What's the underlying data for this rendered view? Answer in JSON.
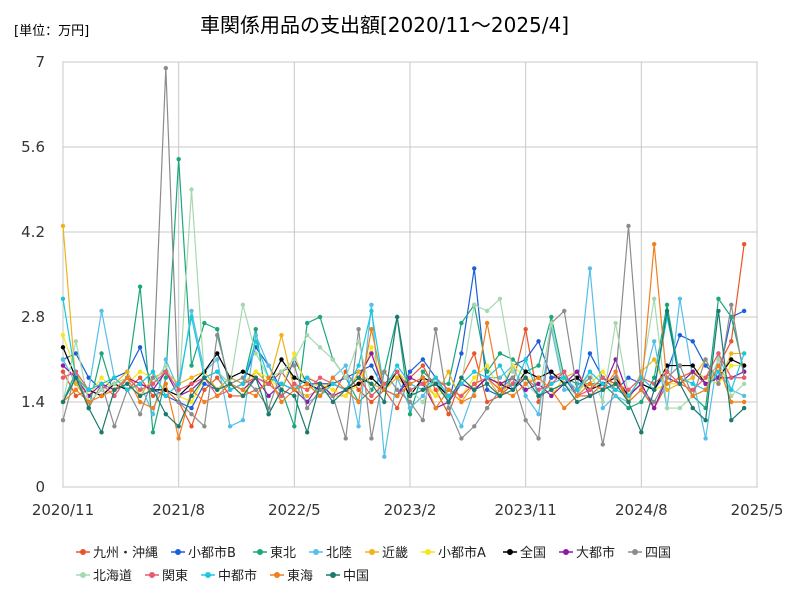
{
  "chart_data": {
    "type": "line",
    "title": "車関係用品の支出額[2020/11～2025/4]",
    "unit_label": "[単位：万円]",
    "xlabel": "",
    "ylabel": "",
    "ylim": [
      0,
      7
    ],
    "y_ticks": [
      "0",
      "1.4",
      "2.8",
      "4.2",
      "5.6",
      "7"
    ],
    "x_ticks": [
      "2020/11",
      "2021/8",
      "2022/5",
      "2023/2",
      "2023/11",
      "2024/8",
      "2025/5"
    ],
    "x_tick_months": [
      0,
      9,
      18,
      27,
      36,
      45,
      54
    ],
    "x_start": "2020/11",
    "x_end": "2025/5",
    "x_step": "1 month",
    "grid": true,
    "legend_position": "bottom",
    "series": [
      {
        "name": "九州・沖縄",
        "color": "#e8552a",
        "values": [
          1.9,
          1.5,
          1.6,
          1.5,
          1.7,
          1.6,
          1.8,
          1.5,
          1.6,
          1.4,
          1.0,
          1.6,
          1.8,
          1.5,
          1.5,
          1.6,
          1.7,
          1.9,
          1.6,
          1.8,
          1.7,
          1.5,
          1.9,
          1.6,
          1.4,
          1.6,
          1.3,
          1.8,
          2.0,
          1.6,
          1.2,
          1.8,
          2.2,
          1.4,
          1.5,
          1.7,
          2.6,
          1.4,
          1.8,
          1.9,
          1.5,
          1.5,
          1.7,
          1.8,
          1.4,
          1.6,
          1.3,
          1.7,
          1.8,
          1.9,
          1.8,
          2.0,
          2.4,
          4.0
        ]
      },
      {
        "name": "小都市B",
        "color": "#1a5fd6",
        "values": [
          2.1,
          2.2,
          1.8,
          1.6,
          1.8,
          1.9,
          2.3,
          1.6,
          1.5,
          1.4,
          1.3,
          1.7,
          1.6,
          1.8,
          1.7,
          2.3,
          2.0,
          1.6,
          2.1,
          1.7,
          1.7,
          1.7,
          1.8,
          1.9,
          2.0,
          1.6,
          1.5,
          1.9,
          2.1,
          1.8,
          1.4,
          2.2,
          3.6,
          1.6,
          1.5,
          2.0,
          2.1,
          2.4,
          1.8,
          1.8,
          1.5,
          2.2,
          1.8,
          1.6,
          1.8,
          1.7,
          1.6,
          1.9,
          2.5,
          2.4,
          2.0,
          1.8,
          2.8,
          2.9
        ]
      },
      {
        "name": "東北",
        "color": "#1aa77b",
        "values": [
          1.4,
          1.9,
          1.3,
          2.2,
          1.5,
          1.8,
          3.3,
          0.9,
          1.8,
          5.4,
          2.0,
          2.7,
          2.6,
          1.6,
          1.7,
          2.6,
          1.2,
          1.6,
          1.0,
          2.7,
          2.8,
          2.1,
          1.8,
          1.4,
          1.6,
          1.9,
          2.8,
          1.2,
          1.9,
          1.7,
          1.7,
          2.7,
          3.0,
          1.9,
          2.2,
          2.1,
          1.9,
          2.0,
          2.8,
          1.8,
          1.7,
          1.7,
          1.7,
          1.5,
          1.3,
          1.4,
          1.8,
          3.0,
          1.8,
          1.5,
          1.3,
          3.1,
          2.8,
          1.9
        ]
      },
      {
        "name": "北陸",
        "color": "#55bfe8",
        "values": [
          2.1,
          1.7,
          1.6,
          2.9,
          1.8,
          1.6,
          1.7,
          1.2,
          2.1,
          1.6,
          2.9,
          1.9,
          2.1,
          1.0,
          1.1,
          2.5,
          2.0,
          1.5,
          1.7,
          1.4,
          1.5,
          1.8,
          2.0,
          1.0,
          3.0,
          0.5,
          1.8,
          1.3,
          1.5,
          1.8,
          1.4,
          1.0,
          1.6,
          1.8,
          1.8,
          2.0,
          1.5,
          1.2,
          2.6,
          1.6,
          1.6,
          3.6,
          1.3,
          1.5,
          1.4,
          1.6,
          2.4,
          1.3,
          3.1,
          1.8,
          0.8,
          2.2,
          1.6,
          1.5
        ]
      },
      {
        "name": "近畿",
        "color": "#f0b21a",
        "values": [
          4.3,
          1.7,
          1.4,
          1.6,
          1.7,
          1.9,
          1.5,
          1.8,
          1.9,
          1.7,
          1.8,
          1.9,
          1.6,
          1.8,
          1.7,
          1.9,
          1.7,
          2.5,
          1.6,
          1.5,
          1.6,
          1.5,
          1.5,
          1.9,
          1.7,
          1.6,
          1.8,
          1.6,
          1.7,
          1.5,
          1.9,
          1.4,
          1.7,
          1.8,
          1.5,
          1.8,
          1.6,
          1.7,
          1.5,
          1.8,
          1.9,
          1.6,
          1.8,
          1.7,
          1.4,
          1.9,
          2.1,
          1.6,
          1.7,
          1.8,
          2.1,
          1.7,
          2.2,
          2.2
        ]
      },
      {
        "name": "小都市A",
        "color": "#f5e61e",
        "values": [
          2.5,
          1.9,
          1.5,
          1.8,
          1.6,
          1.7,
          1.9,
          1.8,
          1.6,
          1.5,
          1.4,
          1.8,
          1.6,
          1.7,
          1.5,
          1.9,
          1.8,
          1.6,
          2.2,
          1.6,
          1.7,
          1.6,
          1.5,
          1.7,
          2.3,
          1.6,
          1.9,
          1.7,
          1.8,
          1.5,
          1.6,
          1.5,
          1.8,
          2.0,
          1.6,
          2.0,
          1.8,
          1.7,
          1.5,
          1.8,
          1.6,
          1.7,
          1.9,
          1.6,
          1.5,
          1.8,
          1.6,
          1.7,
          1.7,
          1.9,
          1.8,
          1.7,
          2.0,
          2.0
        ]
      },
      {
        "name": "全国",
        "color": "#000000",
        "values": [
          2.3,
          1.8,
          1.6,
          1.5,
          1.7,
          1.6,
          1.7,
          1.6,
          1.6,
          1.5,
          1.7,
          1.9,
          2.2,
          1.8,
          1.9,
          1.8,
          1.7,
          2.1,
          1.8,
          1.7,
          1.6,
          1.7,
          1.6,
          1.7,
          1.8,
          1.6,
          1.9,
          1.5,
          1.8,
          1.7,
          1.5,
          1.7,
          1.6,
          1.8,
          1.7,
          1.6,
          1.9,
          1.8,
          1.9,
          1.7,
          1.8,
          1.6,
          1.7,
          1.8,
          1.5,
          1.7,
          1.6,
          2.0,
          2.0,
          2.0,
          1.7,
          1.8,
          2.1,
          2.0
        ]
      },
      {
        "name": "大都市",
        "color": "#8a1aa7",
        "values": [
          2.0,
          1.8,
          1.5,
          1.7,
          1.6,
          1.8,
          1.7,
          1.6,
          1.9,
          1.5,
          1.6,
          1.8,
          1.9,
          1.7,
          1.6,
          1.8,
          1.5,
          1.7,
          1.6,
          1.4,
          1.7,
          1.5,
          1.6,
          1.8,
          2.2,
          1.6,
          1.5,
          1.8,
          1.7,
          1.3,
          1.4,
          1.7,
          1.6,
          1.8,
          1.7,
          1.8,
          1.6,
          1.7,
          1.5,
          1.7,
          1.9,
          1.5,
          1.6,
          2.1,
          1.5,
          1.7,
          1.3,
          1.8,
          1.7,
          1.9,
          1.7,
          1.8,
          1.8,
          1.9
        ]
      },
      {
        "name": "四国",
        "color": "#8c8c8c",
        "values": [
          1.1,
          1.9,
          1.3,
          1.7,
          1.0,
          1.6,
          1.2,
          1.8,
          6.9,
          1.4,
          1.2,
          1.0,
          2.5,
          1.7,
          1.8,
          1.6,
          1.3,
          1.9,
          2.0,
          1.3,
          1.6,
          1.5,
          0.8,
          2.6,
          0.8,
          1.9,
          1.6,
          1.4,
          1.1,
          2.6,
          1.3,
          0.8,
          1.0,
          1.3,
          1.6,
          1.8,
          1.1,
          0.8,
          2.7,
          2.9,
          1.6,
          1.8,
          0.7,
          1.8,
          4.3,
          1.6,
          1.4,
          1.8,
          2.0,
          1.5,
          2.1,
          1.7,
          3.0,
          1.8
        ]
      },
      {
        "name": "北海道",
        "color": "#a8d8b0",
        "values": [
          1.4,
          2.4,
          1.4,
          1.6,
          1.7,
          1.8,
          1.6,
          1.7,
          2.0,
          1.5,
          4.9,
          1.8,
          1.9,
          1.7,
          3.0,
          2.2,
          1.8,
          1.9,
          2.1,
          2.5,
          2.3,
          2.1,
          1.8,
          2.4,
          1.5,
          1.7,
          1.9,
          1.6,
          1.4,
          1.8,
          1.5,
          1.7,
          3.0,
          2.9,
          3.1,
          1.9,
          1.7,
          1.5,
          2.7,
          1.7,
          1.5,
          1.9,
          1.4,
          2.7,
          1.5,
          1.8,
          3.1,
          1.3,
          1.3,
          1.5,
          1.6,
          2.1,
          1.5,
          1.7
        ]
      },
      {
        "name": "関東",
        "color": "#e85a6e",
        "values": [
          1.8,
          1.9,
          1.6,
          1.7,
          1.5,
          1.8,
          1.6,
          1.7,
          1.9,
          1.6,
          1.7,
          1.8,
          1.5,
          1.6,
          1.7,
          1.8,
          1.7,
          1.5,
          1.7,
          1.6,
          1.8,
          1.7,
          1.6,
          1.8,
          1.5,
          1.7,
          1.9,
          1.6,
          1.7,
          1.8,
          1.6,
          1.5,
          1.7,
          1.8,
          1.6,
          1.7,
          1.8,
          1.6,
          1.7,
          1.9,
          1.5,
          1.6,
          1.8,
          1.7,
          1.6,
          1.8,
          1.7,
          1.9,
          1.7,
          1.6,
          1.8,
          2.2,
          1.8,
          1.8
        ]
      },
      {
        "name": "中都市",
        "color": "#1ac8e0",
        "values": [
          3.1,
          1.8,
          1.6,
          1.7,
          1.8,
          1.6,
          1.7,
          1.9,
          1.5,
          1.7,
          2.8,
          1.8,
          1.9,
          1.6,
          1.7,
          2.4,
          1.8,
          1.7,
          1.6,
          1.8,
          1.5,
          1.7,
          1.6,
          2.0,
          2.9,
          1.6,
          2.0,
          1.7,
          1.6,
          1.8,
          1.5,
          1.7,
          1.9,
          1.8,
          2.0,
          1.6,
          2.1,
          1.5,
          1.7,
          1.8,
          1.6,
          1.9,
          1.7,
          1.6,
          1.5,
          1.8,
          1.6,
          2.8,
          1.8,
          1.7,
          1.6,
          1.9,
          1.6,
          2.2
        ]
      },
      {
        "name": "東海",
        "color": "#f07f1e",
        "values": [
          1.4,
          1.6,
          1.4,
          1.5,
          1.6,
          1.8,
          1.4,
          1.3,
          1.7,
          0.8,
          1.6,
          1.4,
          1.5,
          1.7,
          1.6,
          1.5,
          1.8,
          1.4,
          1.6,
          1.7,
          1.5,
          1.8,
          1.6,
          1.4,
          2.6,
          1.6,
          1.5,
          1.7,
          1.8,
          1.3,
          1.6,
          1.4,
          1.5,
          2.7,
          1.6,
          1.5,
          1.7,
          1.8,
          1.6,
          1.3,
          1.5,
          1.7,
          1.6,
          1.9,
          1.4,
          1.6,
          4.0,
          1.7,
          1.8,
          1.5,
          1.6,
          2.0,
          1.4,
          1.4
        ]
      },
      {
        "name": "中国",
        "color": "#1a7a6e",
        "values": [
          1.4,
          1.8,
          1.3,
          0.9,
          1.6,
          1.7,
          1.5,
          1.6,
          1.2,
          1.0,
          1.5,
          1.8,
          1.6,
          1.7,
          1.5,
          1.8,
          1.2,
          1.6,
          1.5,
          0.9,
          1.7,
          1.4,
          1.6,
          1.8,
          1.7,
          1.4,
          2.8,
          1.5,
          1.6,
          1.7,
          1.4,
          1.8,
          1.6,
          1.7,
          1.5,
          1.6,
          1.8,
          1.5,
          1.6,
          1.7,
          1.4,
          1.5,
          1.6,
          1.7,
          1.4,
          0.9,
          1.6,
          2.9,
          1.7,
          1.3,
          1.1,
          2.9,
          1.1,
          1.3
        ]
      }
    ]
  }
}
